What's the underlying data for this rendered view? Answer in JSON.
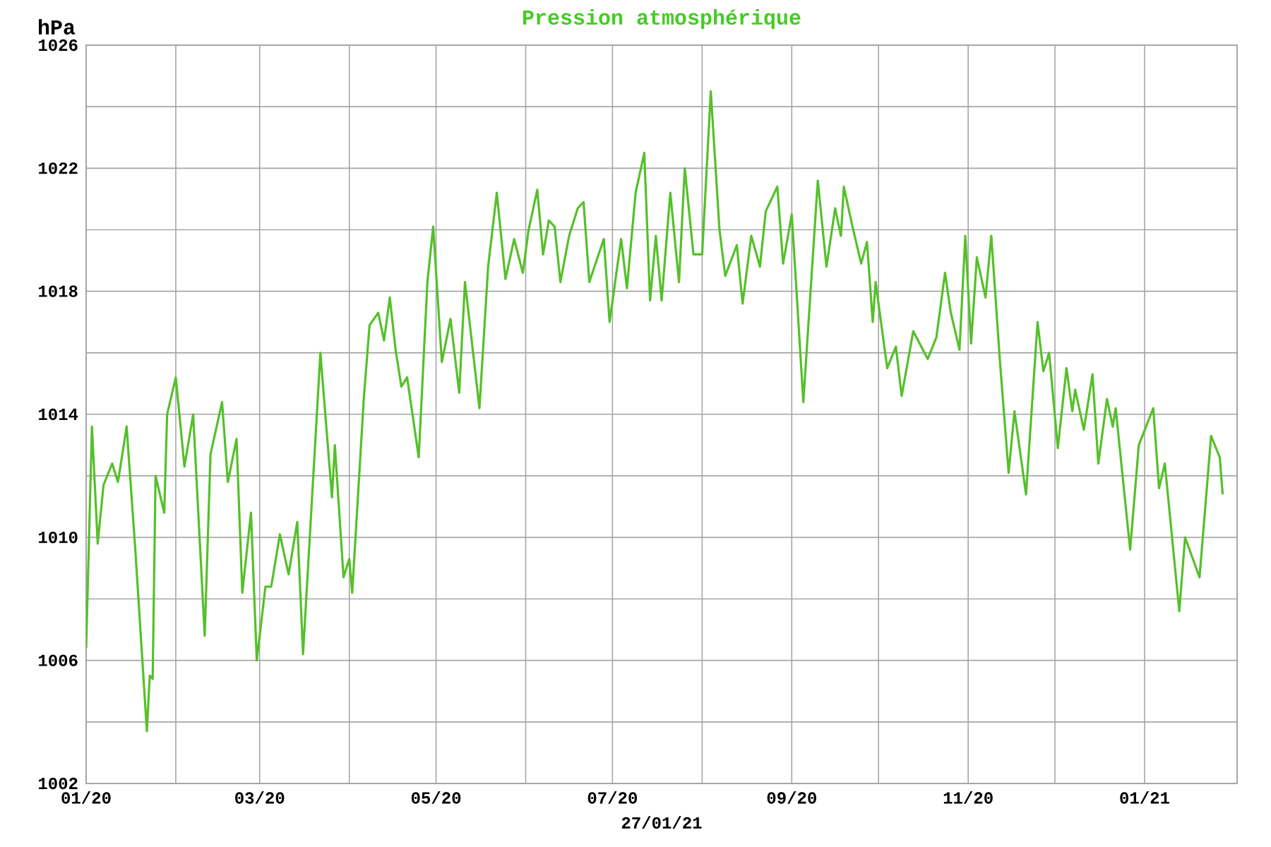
{
  "chart_data": {
    "type": "line",
    "title": "Pression atmosphérique",
    "ylabel": "hPa",
    "xlabel": "27/01/21",
    "color": "#55c02a",
    "grid": true,
    "x": [
      "2020-01-01",
      "2020-01-03",
      "2020-01-05",
      "2020-01-07",
      "2020-01-10",
      "2020-01-12",
      "2020-01-15",
      "2020-01-18",
      "2020-01-22",
      "2020-01-23",
      "2020-01-24",
      "2020-01-25",
      "2020-01-28",
      "2020-01-29",
      "2020-02-01",
      "2020-02-04",
      "2020-02-07",
      "2020-02-11",
      "2020-02-13",
      "2020-02-17",
      "2020-02-19",
      "2020-02-22",
      "2020-02-24",
      "2020-02-27",
      "2020-02-29",
      "2020-03-03",
      "2020-03-05",
      "2020-03-08",
      "2020-03-11",
      "2020-03-14",
      "2020-03-16",
      "2020-03-22",
      "2020-03-26",
      "2020-03-27",
      "2020-03-30",
      "2020-04-01",
      "2020-04-02",
      "2020-04-06",
      "2020-04-08",
      "2020-04-11",
      "2020-04-13",
      "2020-04-15",
      "2020-04-17",
      "2020-04-19",
      "2020-04-21",
      "2020-04-25",
      "2020-04-28",
      "2020-04-30",
      "2020-05-03",
      "2020-05-06",
      "2020-05-09",
      "2020-05-11",
      "2020-05-16",
      "2020-05-19",
      "2020-05-22",
      "2020-05-25",
      "2020-05-28",
      "2020-05-31",
      "2020-06-02",
      "2020-06-05",
      "2020-06-07",
      "2020-06-09",
      "2020-06-11",
      "2020-06-13",
      "2020-06-16",
      "2020-06-19",
      "2020-06-21",
      "2020-06-23",
      "2020-06-28",
      "2020-06-30",
      "2020-07-04",
      "2020-07-06",
      "2020-07-09",
      "2020-07-12",
      "2020-07-14",
      "2020-07-16",
      "2020-07-18",
      "2020-07-21",
      "2020-07-24",
      "2020-07-26",
      "2020-07-29",
      "2020-08-01",
      "2020-08-04",
      "2020-08-07",
      "2020-08-09",
      "2020-08-13",
      "2020-08-15",
      "2020-08-18",
      "2020-08-21",
      "2020-08-23",
      "2020-08-27",
      "2020-08-29",
      "2020-09-01",
      "2020-09-05",
      "2020-09-10",
      "2020-09-13",
      "2020-09-16",
      "2020-09-18",
      "2020-09-19",
      "2020-09-22",
      "2020-09-25",
      "2020-09-27",
      "2020-09-29",
      "2020-09-30",
      "2020-10-04",
      "2020-10-07",
      "2020-10-09",
      "2020-10-13",
      "2020-10-18",
      "2020-10-21",
      "2020-10-24",
      "2020-10-26",
      "2020-10-29",
      "2020-10-31",
      "2020-11-02",
      "2020-11-04",
      "2020-11-07",
      "2020-11-09",
      "2020-11-12",
      "2020-11-15",
      "2020-11-17",
      "2020-11-21",
      "2020-11-25",
      "2020-11-27",
      "2020-11-29",
      "2020-12-02",
      "2020-12-05",
      "2020-12-07",
      "2020-12-08",
      "2020-12-11",
      "2020-12-14",
      "2020-12-16",
      "2020-12-19",
      "2020-12-21",
      "2020-12-22",
      "2020-12-27",
      "2020-12-30",
      "2021-01-04",
      "2021-01-06",
      "2021-01-08",
      "2021-01-13",
      "2021-01-15",
      "2021-01-20",
      "2021-01-24",
      "2021-01-27",
      "2021-01-28"
    ],
    "values": [
      1006.4,
      1013.6,
      1009.8,
      1011.7,
      1012.4,
      1011.8,
      1013.6,
      1009.6,
      1003.7,
      1005.5,
      1005.4,
      1012.0,
      1010.8,
      1014.0,
      1015.2,
      1012.3,
      1014.0,
      1006.8,
      1012.7,
      1014.4,
      1011.8,
      1013.2,
      1008.2,
      1010.8,
      1006.0,
      1008.4,
      1008.4,
      1010.1,
      1008.8,
      1010.5,
      1006.2,
      1016.0,
      1011.3,
      1013.0,
      1008.7,
      1009.3,
      1008.2,
      1014.5,
      1016.9,
      1017.3,
      1016.4,
      1017.8,
      1016.1,
      1014.9,
      1015.2,
      1012.6,
      1018.3,
      1020.1,
      1015.7,
      1017.1,
      1014.7,
      1018.3,
      1014.2,
      1018.8,
      1021.2,
      1018.4,
      1019.7,
      1018.6,
      1020.0,
      1021.3,
      1019.2,
      1020.3,
      1020.1,
      1018.3,
      1019.8,
      1020.7,
      1020.9,
      1018.3,
      1019.7,
      1017.0,
      1019.7,
      1018.1,
      1021.2,
      1022.5,
      1017.7,
      1019.8,
      1017.7,
      1021.2,
      1018.3,
      1022.0,
      1019.2,
      1019.2,
      1024.5,
      1020.0,
      1018.5,
      1019.5,
      1017.6,
      1019.8,
      1018.8,
      1020.6,
      1021.4,
      1018.9,
      1020.5,
      1014.4,
      1021.6,
      1018.8,
      1020.7,
      1019.8,
      1021.4,
      1020.1,
      1018.9,
      1019.6,
      1017.0,
      1018.3,
      1015.5,
      1016.2,
      1014.6,
      1016.7,
      1015.8,
      1016.5,
      1018.6,
      1017.3,
      1016.1,
      1019.8,
      1016.3,
      1019.1,
      1017.8,
      1019.8,
      1015.7,
      1012.1,
      1014.1,
      1011.4,
      1017.0,
      1015.4,
      1016.0,
      1012.9,
      1015.5,
      1014.1,
      1014.8,
      1013.5,
      1015.3,
      1012.4,
      1014.5,
      1013.6,
      1014.2,
      1009.6,
      1013.0,
      1014.2,
      1011.6,
      1012.4,
      1007.6,
      1010.0,
      1008.7,
      1013.3,
      1012.6,
      1011.4
    ],
    "xlim": [
      "2020-01-01",
      "2021-02-02"
    ],
    "xticks": [
      {
        "value": "2020-01-01",
        "label": "01/20"
      },
      {
        "value": "2020-02-01",
        "label": null
      },
      {
        "value": "2020-03-01",
        "label": "03/20"
      },
      {
        "value": "2020-04-01",
        "label": null
      },
      {
        "value": "2020-05-01",
        "label": "05/20"
      },
      {
        "value": "2020-06-01",
        "label": null
      },
      {
        "value": "2020-07-01",
        "label": "07/20"
      },
      {
        "value": "2020-08-01",
        "label": null
      },
      {
        "value": "2020-09-01",
        "label": "09/20"
      },
      {
        "value": "2020-10-01",
        "label": null
      },
      {
        "value": "2020-11-01",
        "label": "11/20"
      },
      {
        "value": "2020-12-01",
        "label": null
      },
      {
        "value": "2021-01-01",
        "label": "01/21"
      }
    ],
    "ylim": [
      1002,
      1026
    ],
    "yticks": [
      1002,
      {
        "value": 1004,
        "label": null
      },
      1006,
      {
        "value": 1008,
        "label": null
      },
      1010,
      {
        "value": 1012,
        "label": null
      },
      1014,
      {
        "value": 1016,
        "label": null
      },
      1018,
      {
        "value": 1020,
        "label": null
      },
      1022,
      {
        "value": 1024,
        "label": null
      },
      1026
    ]
  }
}
